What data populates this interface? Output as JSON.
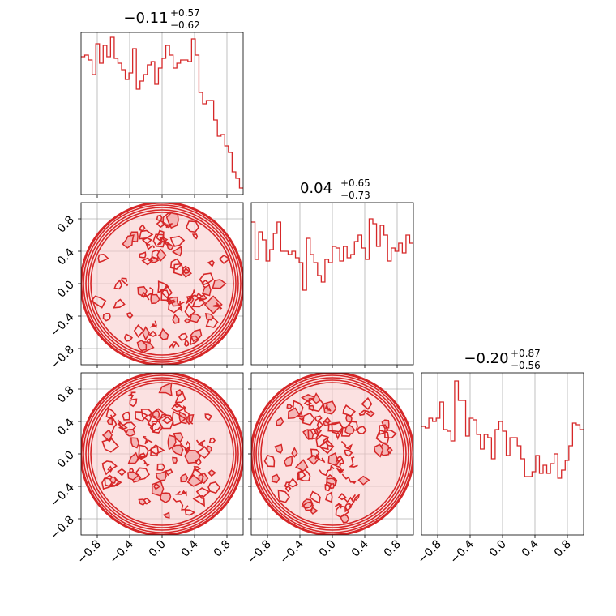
{
  "chart_data": {
    "type": "corner",
    "color": "#d62728",
    "fill_color": "#f4b6b6",
    "grid": true,
    "range": [
      -1,
      1
    ],
    "tick_values": [
      -0.8,
      -0.4,
      0.0,
      0.4,
      0.8
    ],
    "tick_labels": [
      "−0.8",
      "−0.4",
      "0.0",
      "0.4",
      "0.8"
    ],
    "params": [
      {
        "title_main": "−0.11",
        "title_sup": "+0.57",
        "title_sub": "−0.62",
        "hist": [
          0.85,
          0.86,
          0.83,
          0.74,
          0.93,
          0.81,
          0.92,
          0.85,
          0.97,
          0.84,
          0.81,
          0.77,
          0.71,
          0.75,
          0.9,
          0.65,
          0.7,
          0.74,
          0.8,
          0.82,
          0.68,
          0.78,
          0.84,
          0.92,
          0.86,
          0.78,
          0.81,
          0.83,
          0.83,
          0.82,
          0.96,
          0.86,
          0.63,
          0.56,
          0.58,
          0.58,
          0.46,
          0.36,
          0.37,
          0.3,
          0.26,
          0.14,
          0.1,
          0.04
        ]
      },
      {
        "title_main": "0.04",
        "title_sup": "+0.65",
        "title_sub": "−0.73",
        "hist": [
          0.88,
          0.65,
          0.82,
          0.77,
          0.64,
          0.71,
          0.81,
          0.88,
          0.7,
          0.7,
          0.68,
          0.7,
          0.66,
          0.63,
          0.46,
          0.78,
          0.68,
          0.63,
          0.55,
          0.51,
          0.65,
          0.63,
          0.73,
          0.72,
          0.64,
          0.73,
          0.66,
          0.68,
          0.76,
          0.8,
          0.72,
          0.65,
          0.9,
          0.87,
          0.73,
          0.86,
          0.8,
          0.64,
          0.72,
          0.7,
          0.75,
          0.69,
          0.8,
          0.75
        ]
      },
      {
        "title_main": "−0.20",
        "title_sup": "+0.87",
        "title_sub": "−0.56",
        "hist": [
          0.67,
          0.66,
          0.72,
          0.7,
          0.72,
          0.82,
          0.65,
          0.64,
          0.58,
          0.95,
          0.83,
          0.83,
          0.61,
          0.72,
          0.71,
          0.62,
          0.53,
          0.62,
          0.6,
          0.47,
          0.65,
          0.7,
          0.64,
          0.49,
          0.6,
          0.6,
          0.55,
          0.47,
          0.36,
          0.36,
          0.39,
          0.49,
          0.38,
          0.43,
          0.38,
          0.44,
          0.5,
          0.35,
          0.4,
          0.46,
          0.55,
          0.69,
          0.68,
          0.65
        ]
      }
    ],
    "pairs": [
      {
        "row": 1,
        "col": 0
      },
      {
        "row": 2,
        "col": 0
      },
      {
        "row": 2,
        "col": 1
      }
    ]
  }
}
